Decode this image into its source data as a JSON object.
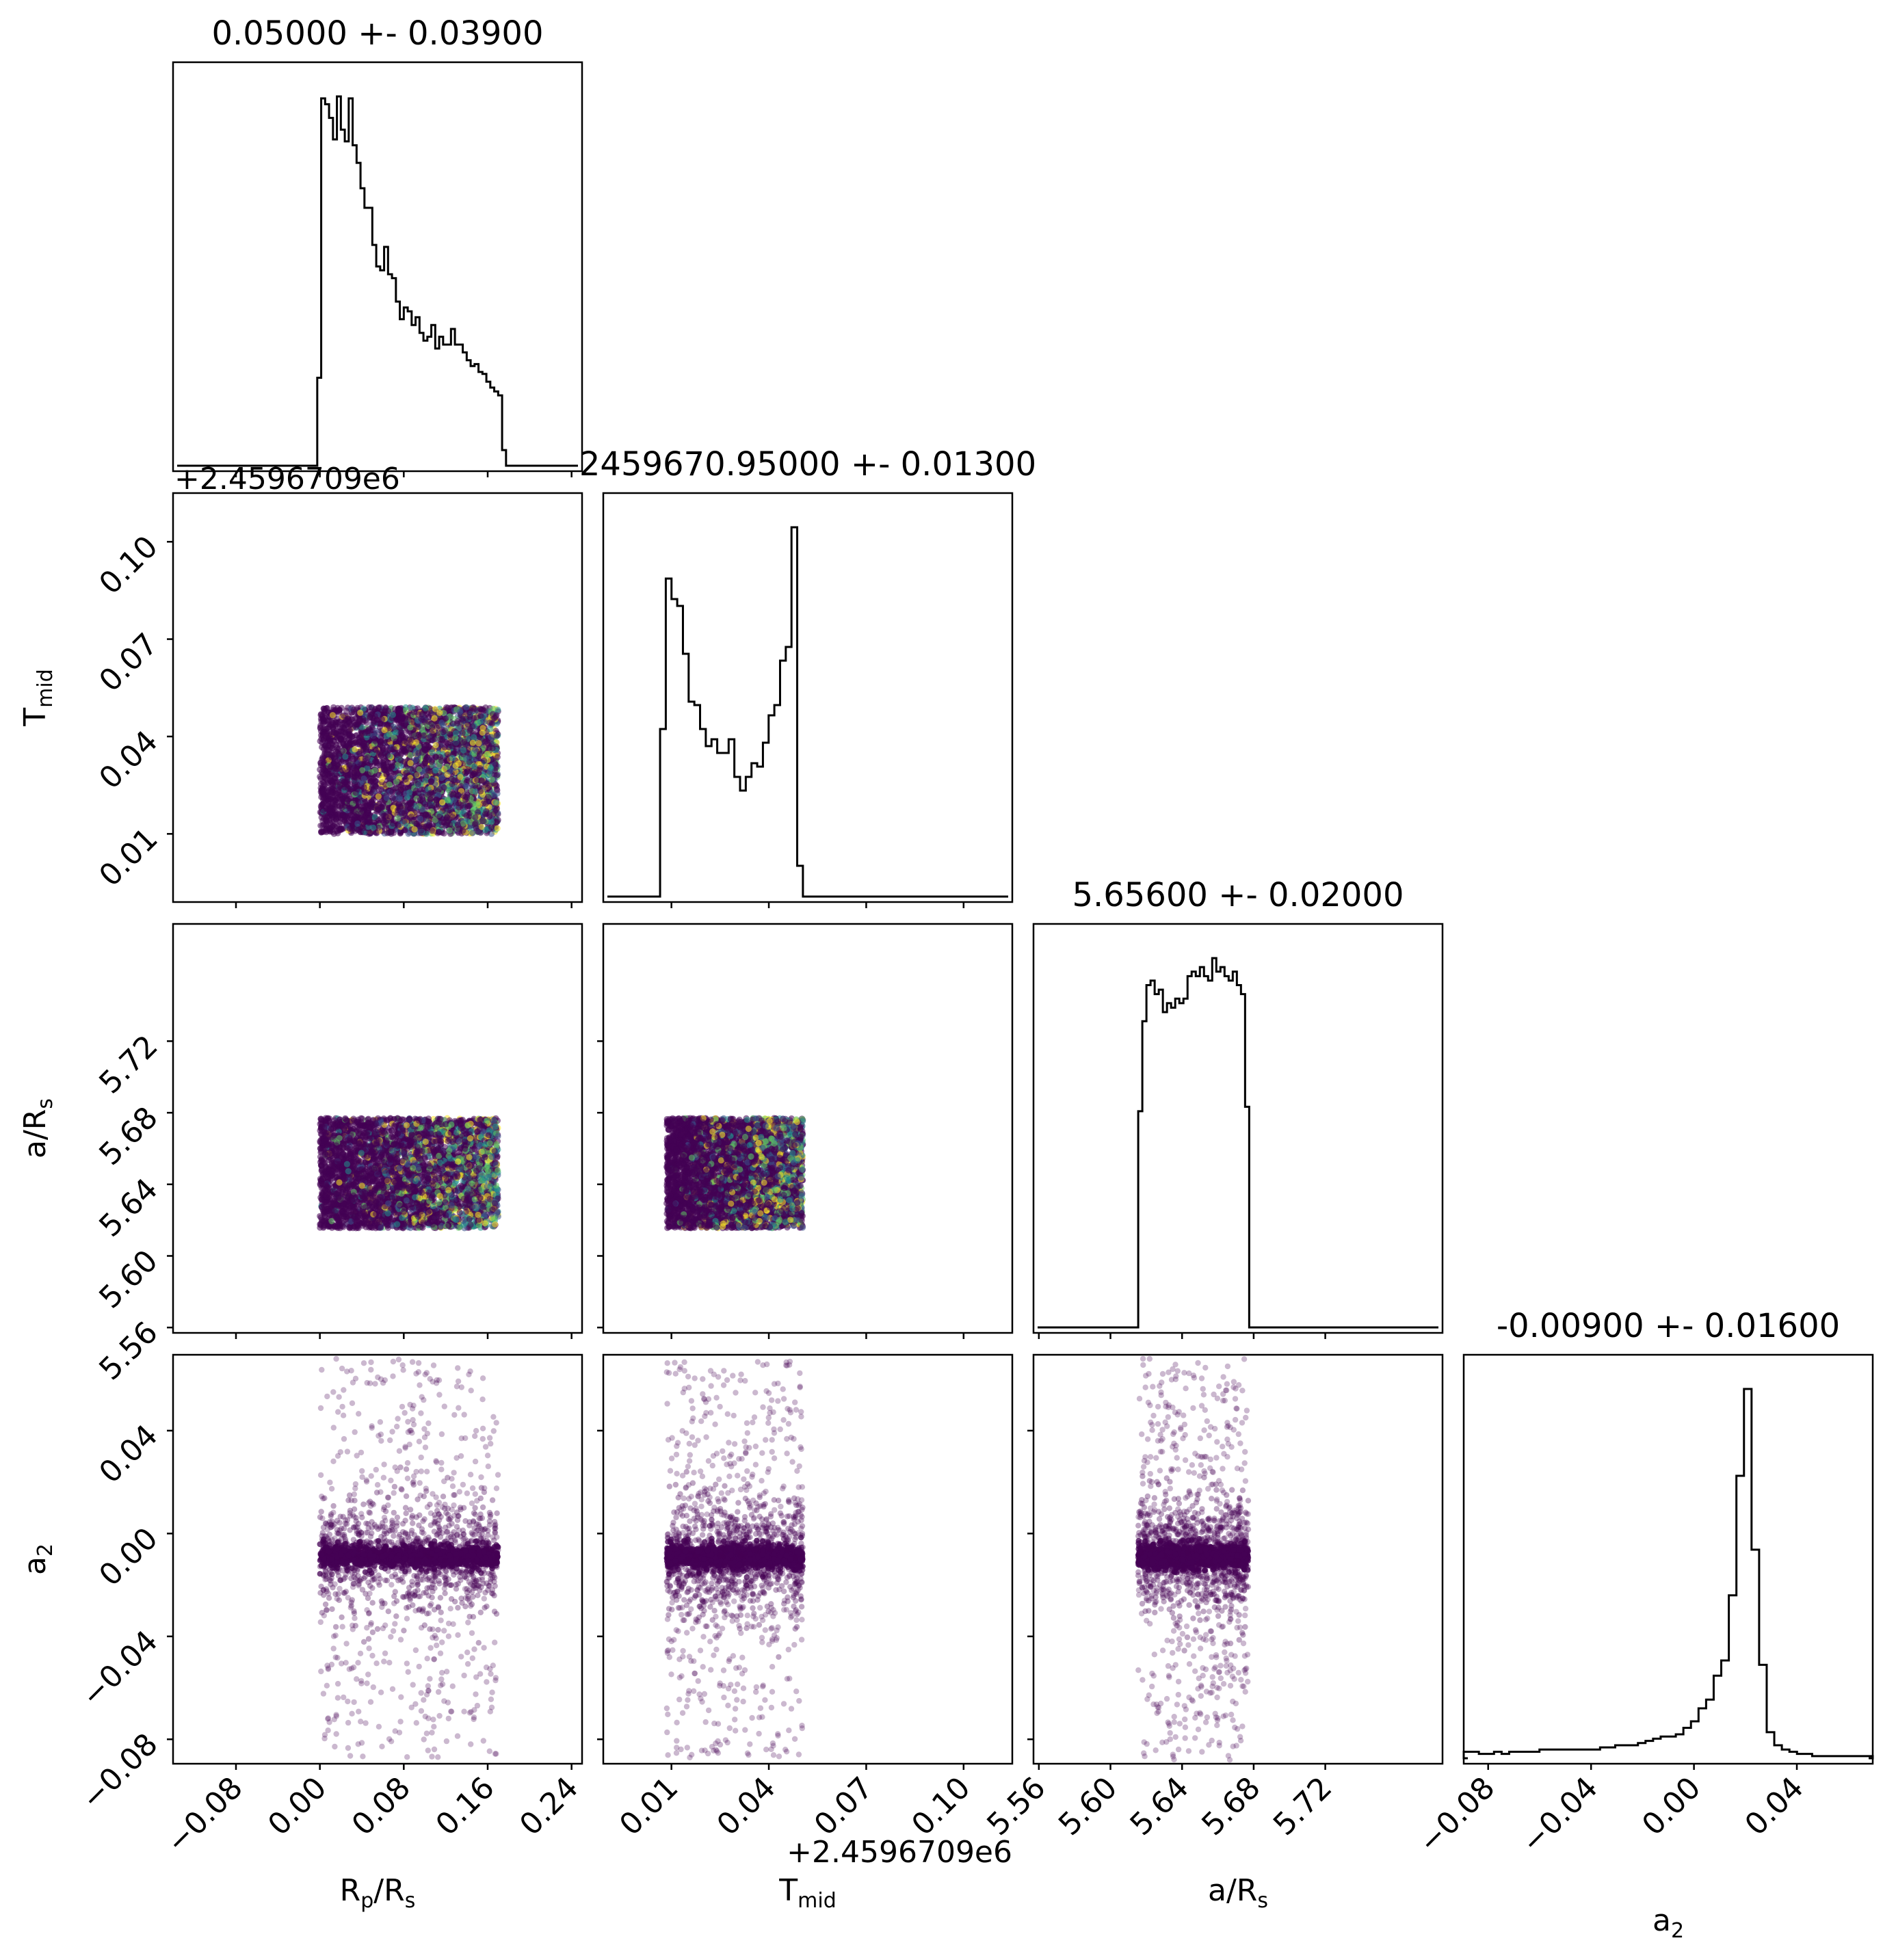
{
  "chart_data": {
    "type": "scatter",
    "kind": "corner-plot",
    "parameters": [
      {
        "key": "rp",
        "label_main": "R",
        "label_sub1": "p",
        "label_mid": "/R",
        "label_sub2": "s",
        "title": "0.05000 +- 0.03900",
        "range": [
          -0.14,
          0.25
        ],
        "ticks": [
          -0.08,
          0.0,
          0.08,
          0.16,
          0.24
        ],
        "tick_labels": [
          "−0.08",
          "0.00",
          "0.08",
          "0.16",
          "0.24"
        ],
        "offset_label": ""
      },
      {
        "key": "tmid",
        "label_main": "T",
        "label_sub1": "mid",
        "label_mid": "",
        "label_sub2": "",
        "title": "2459670.95000 +- 0.01300",
        "range": [
          -0.011,
          0.115
        ],
        "ticks": [
          0.01,
          0.04,
          0.07,
          0.1
        ],
        "tick_labels": [
          "0.01",
          "0.04",
          "0.07",
          "0.10"
        ],
        "offset_label": "+2.4596709e6"
      },
      {
        "key": "ars",
        "label_main": "a/R",
        "label_sub1": "s",
        "label_mid": "",
        "label_sub2": "",
        "title": "5.65600 +- 0.02000",
        "range": [
          5.557,
          5.7855
        ],
        "ticks": [
          5.56,
          5.6,
          5.64,
          5.68,
          5.72
        ],
        "tick_labels": [
          "5.56",
          "5.60",
          "5.64",
          "5.68",
          "5.72"
        ],
        "offset_label": ""
      },
      {
        "key": "a2",
        "label_main": "a",
        "label_sub1": "2",
        "label_mid": "",
        "label_sub2": "",
        "title": "-0.00900 +- 0.01600",
        "range": [
          -0.0895,
          0.0695
        ],
        "ticks": [
          -0.08,
          -0.04,
          0.0,
          0.04
        ],
        "tick_labels": [
          "−0.08",
          "−0.04",
          "0.00",
          "0.04"
        ],
        "offset_label": ""
      }
    ],
    "histograms": [
      {
        "parameter": "R_p/R_s",
        "bin_edges_range": [
          -0.0025,
          0.1775
        ],
        "counts": [
          45,
          188,
          185,
          178,
          167,
          189,
          172,
          166,
          188,
          164,
          155,
          142,
          132,
          132,
          113,
          102,
          100,
          112,
          98,
          96,
          84,
          75,
          81,
          79,
          72,
          76,
          68,
          64,
          66,
          72,
          60,
          66,
          62,
          62,
          70,
          62,
          62,
          58,
          54,
          51,
          52,
          48,
          47,
          43,
          40,
          38,
          36,
          8
        ]
      },
      {
        "parameter": "T_mid",
        "bin_edges_range": [
          0.0065,
          0.0505
        ],
        "counts": [
          49,
          93,
          87,
          85,
          71,
          57,
          56,
          49,
          44,
          46,
          42,
          42,
          46,
          35,
          31,
          35,
          39,
          38,
          45,
          53,
          56,
          69,
          73,
          108,
          9
        ]
      },
      {
        "parameter": "a/R_s",
        "bin_edges_range": [
          5.6155,
          5.6775
        ],
        "counts": [
          48,
          68,
          76,
          77,
          74,
          75,
          70,
          72,
          71,
          73,
          72,
          73,
          78,
          79,
          78,
          80,
          78,
          77,
          82,
          79,
          80,
          78,
          77,
          79,
          76,
          74,
          49
        ]
      },
      {
        "parameter": "a_2",
        "bin_edges_range": [
          -0.0895,
          0.0695
        ],
        "counts": [
          3,
          3,
          2,
          2,
          3,
          2,
          3,
          3,
          3,
          3,
          4,
          4,
          4,
          4,
          4,
          4,
          4,
          4,
          5,
          5,
          6,
          6,
          6,
          7,
          8,
          9,
          10,
          10,
          11,
          14,
          17,
          23,
          27,
          38,
          45,
          75,
          130,
          170,
          96,
          43,
          12,
          6,
          4,
          3,
          2,
          2,
          1,
          1,
          1,
          1,
          1,
          1,
          1,
          1
        ]
      }
    ],
    "scatter_panels": [
      {
        "x": "R_p/R_s",
        "y": "T_mid",
        "x_range": [
          0.0,
          0.17
        ],
        "y_range": [
          0.01,
          0.049
        ]
      },
      {
        "x": "R_p/R_s",
        "y": "a/R_s",
        "x_range": [
          0.0,
          0.17
        ],
        "y_range": [
          5.6155,
          5.677
        ]
      },
      {
        "x": "T_mid",
        "y": "a/R_s",
        "x_range": [
          0.0085,
          0.0505
        ],
        "y_range": [
          5.6155,
          5.677
        ]
      },
      {
        "x": "R_p/R_s",
        "y": "a_2",
        "x_range": [
          0.0,
          0.17
        ],
        "y_range": [
          -0.088,
          0.068
        ]
      },
      {
        "x": "T_mid",
        "y": "a_2",
        "x_range": [
          0.0085,
          0.0505
        ],
        "y_range": [
          -0.088,
          0.068
        ]
      },
      {
        "x": "a/R_s",
        "y": "a_2",
        "x_range": [
          5.6155,
          5.677
        ],
        "y_range": [
          -0.088,
          0.068
        ]
      }
    ],
    "colors": {
      "histogram_line": "#000000",
      "scatter_colormap": [
        "#440154",
        "#3b528b",
        "#21918c",
        "#5ec962",
        "#fde725"
      ],
      "scatter_primary": "#440154"
    },
    "grid": false,
    "legend": "none"
  }
}
